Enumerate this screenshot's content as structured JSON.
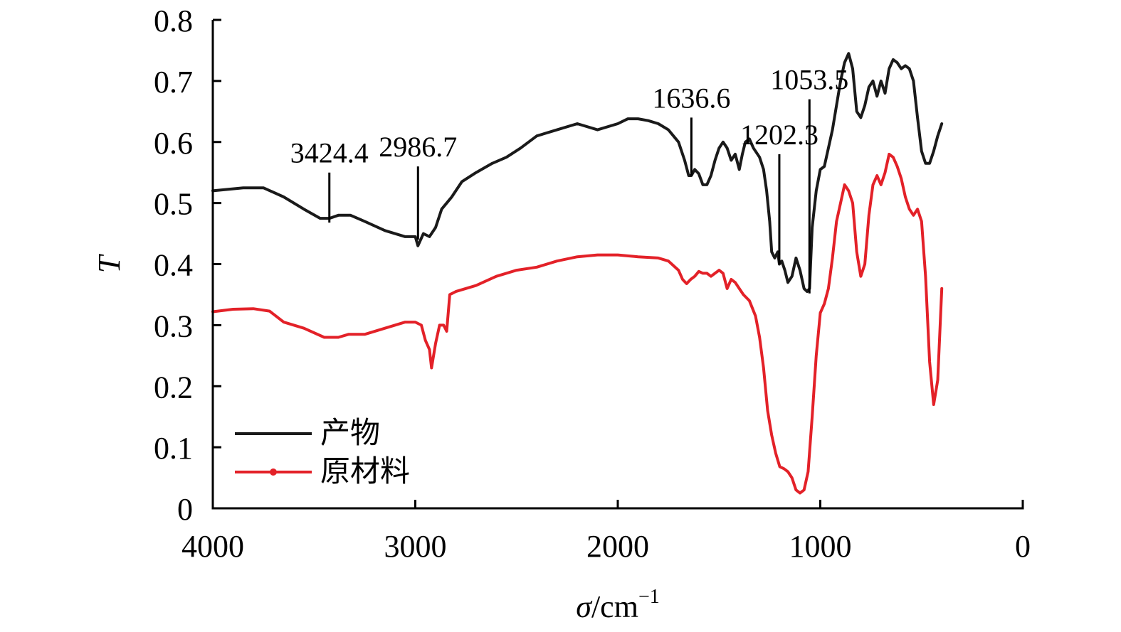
{
  "chart_data": {
    "type": "line",
    "xlabel": "σ/cm",
    "xlabel_superscript": "−1",
    "ylabel": "T",
    "xlim": [
      4000,
      0
    ],
    "ylim": [
      0,
      0.8
    ],
    "x_ticks": [
      4000,
      3000,
      2000,
      1000,
      0
    ],
    "y_ticks": [
      0,
      0.1,
      0.2,
      0.3,
      0.4,
      0.5,
      0.6,
      0.7,
      0.8
    ],
    "x_tick_labels": [
      "4000",
      "3000",
      "2000",
      "1000",
      "0"
    ],
    "y_tick_labels": [
      "0",
      "0.1",
      "0.2",
      "0.3",
      "0.4",
      "0.5",
      "0.6",
      "0.7",
      "0.8"
    ],
    "grid": false,
    "legend_position": "bottom-left",
    "series": [
      {
        "name": "产物",
        "color": "#1a1a1a",
        "marker": "none",
        "points": [
          [
            4000,
            0.52
          ],
          [
            3850,
            0.525
          ],
          [
            3750,
            0.525
          ],
          [
            3650,
            0.51
          ],
          [
            3550,
            0.49
          ],
          [
            3470,
            0.475
          ],
          [
            3424,
            0.475
          ],
          [
            3380,
            0.48
          ],
          [
            3320,
            0.48
          ],
          [
            3250,
            0.47
          ],
          [
            3150,
            0.455
          ],
          [
            3050,
            0.445
          ],
          [
            3000,
            0.445
          ],
          [
            2987,
            0.43
          ],
          [
            2960,
            0.45
          ],
          [
            2930,
            0.445
          ],
          [
            2900,
            0.46
          ],
          [
            2870,
            0.49
          ],
          [
            2820,
            0.51
          ],
          [
            2770,
            0.535
          ],
          [
            2700,
            0.55
          ],
          [
            2620,
            0.565
          ],
          [
            2550,
            0.575
          ],
          [
            2480,
            0.59
          ],
          [
            2400,
            0.61
          ],
          [
            2300,
            0.62
          ],
          [
            2200,
            0.63
          ],
          [
            2100,
            0.62
          ],
          [
            2000,
            0.63
          ],
          [
            1950,
            0.638
          ],
          [
            1900,
            0.638
          ],
          [
            1850,
            0.635
          ],
          [
            1800,
            0.63
          ],
          [
            1750,
            0.62
          ],
          [
            1700,
            0.6
          ],
          [
            1670,
            0.57
          ],
          [
            1650,
            0.545
          ],
          [
            1637,
            0.545
          ],
          [
            1620,
            0.555
          ],
          [
            1600,
            0.548
          ],
          [
            1580,
            0.53
          ],
          [
            1560,
            0.53
          ],
          [
            1540,
            0.545
          ],
          [
            1520,
            0.57
          ],
          [
            1500,
            0.59
          ],
          [
            1480,
            0.6
          ],
          [
            1460,
            0.59
          ],
          [
            1440,
            0.57
          ],
          [
            1420,
            0.58
          ],
          [
            1400,
            0.555
          ],
          [
            1385,
            0.58
          ],
          [
            1370,
            0.6
          ],
          [
            1350,
            0.605
          ],
          [
            1330,
            0.59
          ],
          [
            1300,
            0.575
          ],
          [
            1280,
            0.555
          ],
          [
            1265,
            0.52
          ],
          [
            1250,
            0.47
          ],
          [
            1240,
            0.42
          ],
          [
            1225,
            0.41
          ],
          [
            1210,
            0.42
          ],
          [
            1202,
            0.4
          ],
          [
            1190,
            0.405
          ],
          [
            1175,
            0.39
          ],
          [
            1160,
            0.37
          ],
          [
            1140,
            0.38
          ],
          [
            1120,
            0.41
          ],
          [
            1100,
            0.39
          ],
          [
            1080,
            0.36
          ],
          [
            1065,
            0.355
          ],
          [
            1053,
            0.36
          ],
          [
            1040,
            0.46
          ],
          [
            1020,
            0.52
          ],
          [
            1000,
            0.555
          ],
          [
            980,
            0.56
          ],
          [
            960,
            0.59
          ],
          [
            940,
            0.62
          ],
          [
            920,
            0.66
          ],
          [
            900,
            0.7
          ],
          [
            880,
            0.73
          ],
          [
            860,
            0.745
          ],
          [
            840,
            0.72
          ],
          [
            820,
            0.65
          ],
          [
            800,
            0.64
          ],
          [
            780,
            0.66
          ],
          [
            760,
            0.69
          ],
          [
            740,
            0.7
          ],
          [
            720,
            0.675
          ],
          [
            700,
            0.7
          ],
          [
            680,
            0.68
          ],
          [
            660,
            0.72
          ],
          [
            640,
            0.735
          ],
          [
            620,
            0.73
          ],
          [
            600,
            0.72
          ],
          [
            580,
            0.725
          ],
          [
            560,
            0.72
          ],
          [
            540,
            0.7
          ],
          [
            520,
            0.64
          ],
          [
            500,
            0.585
          ],
          [
            480,
            0.565
          ],
          [
            460,
            0.565
          ],
          [
            440,
            0.585
          ],
          [
            420,
            0.61
          ],
          [
            400,
            0.63
          ]
        ]
      },
      {
        "name": "原材料",
        "color": "#e32128",
        "marker": "dot",
        "points": [
          [
            4000,
            0.322
          ],
          [
            3900,
            0.326
          ],
          [
            3800,
            0.327
          ],
          [
            3720,
            0.323
          ],
          [
            3650,
            0.305
          ],
          [
            3550,
            0.295
          ],
          [
            3450,
            0.28
          ],
          [
            3380,
            0.28
          ],
          [
            3330,
            0.285
          ],
          [
            3250,
            0.285
          ],
          [
            3150,
            0.295
          ],
          [
            3050,
            0.305
          ],
          [
            3000,
            0.305
          ],
          [
            2970,
            0.3
          ],
          [
            2950,
            0.275
          ],
          [
            2930,
            0.26
          ],
          [
            2920,
            0.23
          ],
          [
            2900,
            0.27
          ],
          [
            2880,
            0.3
          ],
          [
            2860,
            0.3
          ],
          [
            2845,
            0.29
          ],
          [
            2830,
            0.35
          ],
          [
            2800,
            0.355
          ],
          [
            2700,
            0.365
          ],
          [
            2600,
            0.38
          ],
          [
            2500,
            0.39
          ],
          [
            2400,
            0.395
          ],
          [
            2300,
            0.405
          ],
          [
            2200,
            0.412
          ],
          [
            2100,
            0.415
          ],
          [
            2000,
            0.415
          ],
          [
            1900,
            0.412
          ],
          [
            1800,
            0.41
          ],
          [
            1750,
            0.405
          ],
          [
            1700,
            0.39
          ],
          [
            1680,
            0.375
          ],
          [
            1660,
            0.368
          ],
          [
            1640,
            0.375
          ],
          [
            1620,
            0.38
          ],
          [
            1600,
            0.388
          ],
          [
            1580,
            0.385
          ],
          [
            1560,
            0.385
          ],
          [
            1540,
            0.38
          ],
          [
            1520,
            0.385
          ],
          [
            1500,
            0.39
          ],
          [
            1480,
            0.385
          ],
          [
            1460,
            0.36
          ],
          [
            1440,
            0.375
          ],
          [
            1420,
            0.37
          ],
          [
            1400,
            0.36
          ],
          [
            1380,
            0.35
          ],
          [
            1350,
            0.34
          ],
          [
            1320,
            0.315
          ],
          [
            1300,
            0.28
          ],
          [
            1280,
            0.23
          ],
          [
            1260,
            0.16
          ],
          [
            1240,
            0.12
          ],
          [
            1220,
            0.09
          ],
          [
            1200,
            0.068
          ],
          [
            1180,
            0.065
          ],
          [
            1160,
            0.06
          ],
          [
            1140,
            0.05
          ],
          [
            1120,
            0.03
          ],
          [
            1100,
            0.025
          ],
          [
            1080,
            0.03
          ],
          [
            1060,
            0.06
          ],
          [
            1040,
            0.15
          ],
          [
            1020,
            0.25
          ],
          [
            1000,
            0.32
          ],
          [
            980,
            0.335
          ],
          [
            960,
            0.36
          ],
          [
            940,
            0.41
          ],
          [
            920,
            0.47
          ],
          [
            900,
            0.5
          ],
          [
            880,
            0.53
          ],
          [
            860,
            0.52
          ],
          [
            840,
            0.5
          ],
          [
            820,
            0.42
          ],
          [
            800,
            0.38
          ],
          [
            780,
            0.4
          ],
          [
            760,
            0.48
          ],
          [
            740,
            0.53
          ],
          [
            720,
            0.545
          ],
          [
            700,
            0.53
          ],
          [
            680,
            0.55
          ],
          [
            660,
            0.58
          ],
          [
            640,
            0.575
          ],
          [
            620,
            0.56
          ],
          [
            600,
            0.54
          ],
          [
            580,
            0.51
          ],
          [
            560,
            0.49
          ],
          [
            540,
            0.48
          ],
          [
            520,
            0.49
          ],
          [
            500,
            0.47
          ],
          [
            480,
            0.38
          ],
          [
            460,
            0.24
          ],
          [
            440,
            0.17
          ],
          [
            420,
            0.21
          ],
          [
            400,
            0.36
          ]
        ]
      }
    ],
    "annotations": [
      {
        "label": "3424.4",
        "x": 3424.4,
        "y_low": 0.468,
        "y_high": 0.55
      },
      {
        "label": "2986.7",
        "x": 2986.7,
        "y_low": 0.44,
        "y_high": 0.56
      },
      {
        "label": "1636.6",
        "x": 1636.6,
        "y_low": 0.545,
        "y_high": 0.64
      },
      {
        "label": "1202.3",
        "x": 1202.3,
        "y_low": 0.4,
        "y_high": 0.58
      },
      {
        "label": "1053.5",
        "x": 1053.5,
        "y_low": 0.352,
        "y_high": 0.67
      }
    ]
  }
}
